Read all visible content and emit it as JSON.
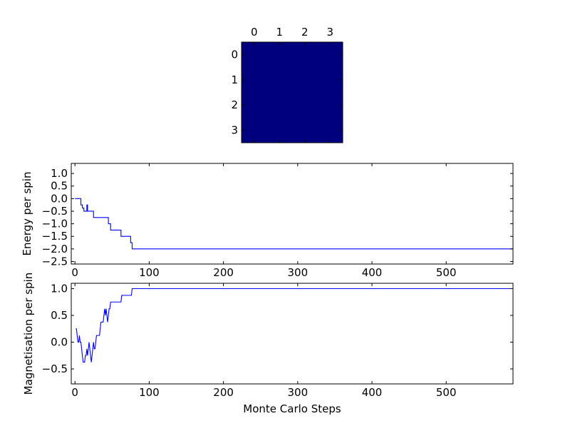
{
  "chart_data": [
    {
      "type": "heatmap",
      "x_ticks": [
        "0",
        "1",
        "2",
        "3"
      ],
      "y_ticks": [
        "0",
        "1",
        "2",
        "3"
      ],
      "values": [
        [
          1,
          1,
          1,
          1
        ],
        [
          1,
          1,
          1,
          1
        ],
        [
          1,
          1,
          1,
          1
        ],
        [
          1,
          1,
          1,
          1
        ]
      ],
      "cell_color": "#00007f",
      "title": "",
      "xlabel": "",
      "ylabel": ""
    },
    {
      "type": "line",
      "title": "",
      "xlabel": "",
      "ylabel": "Energy per spin",
      "xlim": [
        -5,
        590
      ],
      "ylim": [
        -2.6,
        1.4
      ],
      "x_ticks": [
        0,
        100,
        200,
        300,
        400,
        500
      ],
      "x_tick_labels": [
        "0",
        "100",
        "200",
        "300",
        "400",
        "500"
      ],
      "y_ticks": [
        1.0,
        0.5,
        0.0,
        -0.5,
        -1.0,
        -1.5,
        -2.0,
        -2.5
      ],
      "y_tick_labels": [
        "1.0",
        "0.5",
        "0.0",
        "−0.5",
        "−1.0",
        "−1.5",
        "−2.0",
        "−2.5"
      ],
      "line_color": "#0000ff",
      "series": [
        {
          "x": [
            0,
            8,
            8,
            10,
            10,
            12,
            12,
            16,
            16,
            17,
            17,
            19,
            19,
            25,
            25,
            30,
            30,
            34,
            34,
            40,
            40,
            45,
            45,
            48,
            48,
            55,
            55,
            62,
            62,
            66,
            66,
            75,
            75,
            77,
            77,
            590
          ],
          "y": [
            0.0,
            0.0,
            -0.25,
            -0.25,
            -0.375,
            -0.375,
            -0.5,
            -0.5,
            -0.25,
            -0.25,
            -0.5,
            -0.5,
            -0.5,
            -0.5,
            -0.75,
            -0.75,
            -0.75,
            -0.75,
            -0.75,
            -0.75,
            -0.75,
            -0.75,
            -1.0,
            -1.0,
            -1.25,
            -1.25,
            -1.25,
            -1.25,
            -1.5,
            -1.5,
            -1.5,
            -1.5,
            -1.75,
            -1.75,
            -2.0,
            -2.0
          ]
        }
      ]
    },
    {
      "type": "line",
      "title": "",
      "xlabel": "Monte Carlo Steps",
      "ylabel": "Magnetisation per spin",
      "xlim": [
        -5,
        590
      ],
      "ylim": [
        -0.78,
        1.1
      ],
      "x_ticks": [
        0,
        100,
        200,
        300,
        400,
        500
      ],
      "x_tick_labels": [
        "0",
        "100",
        "200",
        "300",
        "400",
        "500"
      ],
      "y_ticks": [
        1.0,
        0.5,
        0.0,
        -0.5
      ],
      "y_tick_labels": [
        "1.0",
        "0.5",
        "0.0",
        "−0.5"
      ],
      "line_color": "#0000ff",
      "series": [
        {
          "x": [
            1,
            2,
            3,
            4,
            5,
            6,
            7,
            8,
            9,
            10,
            11,
            12,
            13,
            14,
            15,
            16,
            17,
            18,
            19,
            20,
            21,
            22,
            23,
            24,
            25,
            26,
            27,
            28,
            29,
            30,
            31,
            32,
            33,
            34,
            35,
            36,
            37,
            38,
            39,
            40,
            41,
            42,
            43,
            44,
            45,
            46,
            47,
            48,
            49,
            50,
            52,
            54,
            56,
            58,
            60,
            62,
            63,
            64,
            66,
            68,
            70,
            72,
            74,
            76,
            77,
            78,
            590
          ],
          "y": [
            0.25,
            0.25,
            0.125,
            0.0,
            0.0,
            0.125,
            0.0,
            0.0,
            -0.125,
            -0.25,
            -0.375,
            -0.375,
            -0.375,
            -0.25,
            -0.25,
            -0.125,
            -0.25,
            -0.125,
            0.0,
            -0.125,
            -0.25,
            -0.375,
            -0.25,
            -0.125,
            0.0,
            -0.125,
            -0.125,
            0.0,
            0.125,
            0.125,
            0.125,
            0.125,
            0.125,
            0.25,
            0.375,
            0.375,
            0.375,
            0.375,
            0.5,
            0.625,
            0.5,
            0.625,
            0.5,
            0.375,
            0.5,
            0.625,
            0.625,
            0.75,
            0.75,
            0.75,
            0.75,
            0.75,
            0.75,
            0.75,
            0.75,
            0.75,
            0.875,
            0.875,
            0.875,
            0.875,
            0.875,
            0.875,
            0.875,
            0.875,
            1.0,
            1.0,
            1.0
          ]
        }
      ]
    }
  ]
}
